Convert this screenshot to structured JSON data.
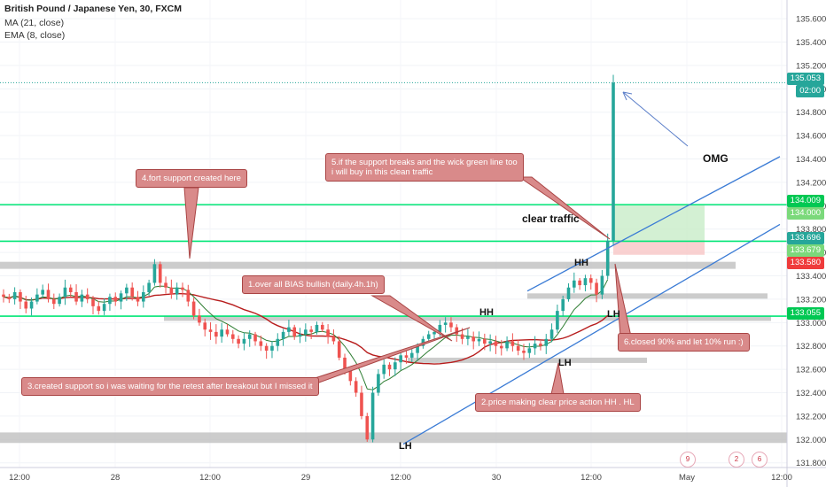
{
  "header": {
    "title": "British Pound / Japanese Yen, 30, FXCM",
    "ma": "MA (21, close)",
    "ema": "EMA (8, close)"
  },
  "chart_data": {
    "type": "candlestick",
    "ylim": [
      131.76,
      135.76
    ],
    "y_ticks": [
      "135.600",
      "135.400",
      "135.200",
      "135.000",
      "134.800",
      "134.600",
      "134.400",
      "134.200",
      "134.000",
      "133.800",
      "133.600",
      "133.400",
      "133.200",
      "133.000",
      "132.800",
      "132.600",
      "132.400",
      "132.200",
      "132.000",
      "131.800"
    ],
    "x_ticks": [
      "12:00",
      "28",
      "12:00",
      "29",
      "12:00",
      "30",
      "12:00",
      "May",
      "12:00"
    ],
    "price_labels": [
      {
        "value": "135.053",
        "color": "#26a69a"
      },
      {
        "value": "02:00",
        "color": "#26a69a"
      },
      {
        "value": "134.009",
        "color": "#00c853"
      },
      {
        "value": "134.000",
        "color": "#7bd97b"
      },
      {
        "value": "133.696",
        "color": "#26a69a"
      },
      {
        "value": "133.679",
        "color": "#7bd97b"
      },
      {
        "value": "133.580",
        "color": "#ef3b3b"
      },
      {
        "value": "133.055",
        "color": "#00c853"
      }
    ],
    "horizontal_lines": [
      {
        "price": 134.009,
        "color": "#00e676"
      },
      {
        "price": 133.696,
        "color": "#00e676"
      },
      {
        "price": 133.055,
        "color": "#00e676"
      }
    ],
    "support_zones": [
      {
        "from_time": 0,
        "to_time": 830,
        "price_top": 133.52,
        "price_bottom": 133.46
      },
      {
        "from_time": 185,
        "to_time": 870,
        "price_top": 133.06,
        "price_bottom": 133.02
      },
      {
        "from_time": 595,
        "to_time": 866,
        "price_top": 133.25,
        "price_bottom": 133.21
      },
      {
        "from_time": 460,
        "to_time": 730,
        "price_top": 132.7,
        "price_bottom": 132.67
      },
      {
        "from_time": 0,
        "to_time": 888,
        "price_top": 132.06,
        "price_bottom": 131.97
      }
    ],
    "candles_summary": {
      "bullish_color": "#26a69a",
      "bearish_color": "#ef5350",
      "closes": [
        133.22,
        133.2,
        133.26,
        133.18,
        133.12,
        133.18,
        133.24,
        133.28,
        133.2,
        133.16,
        133.22,
        133.3,
        133.26,
        133.18,
        133.24,
        133.2,
        133.14,
        133.1,
        133.16,
        133.22,
        133.18,
        133.25,
        133.3,
        133.22,
        133.18,
        133.26,
        133.34,
        133.5,
        133.34,
        133.3,
        133.24,
        133.3,
        133.28,
        133.18,
        133.06,
        133.0,
        132.94,
        132.92,
        132.88,
        132.94,
        132.9,
        132.86,
        132.82,
        132.86,
        132.9,
        132.84,
        132.8,
        132.76,
        132.8,
        132.86,
        132.92,
        132.96,
        132.88,
        132.9,
        132.94,
        132.92,
        132.98,
        132.94,
        132.88,
        132.84,
        132.7,
        132.6,
        132.5,
        132.4,
        132.2,
        132.0,
        132.4,
        132.56,
        132.64,
        132.6,
        132.66,
        132.72,
        132.7,
        132.74,
        132.8,
        132.86,
        132.9,
        132.92,
        132.98,
        133.0,
        132.96,
        132.9,
        132.86,
        132.88,
        132.84,
        132.86,
        132.82,
        132.84,
        132.8,
        132.78,
        132.84,
        132.8,
        132.76,
        132.74,
        132.78,
        132.82,
        132.8,
        132.86,
        132.94,
        133.1,
        133.2,
        133.3,
        133.36,
        133.32,
        133.38,
        133.34,
        133.24,
        133.4,
        133.7,
        135.053
      ]
    },
    "trend_channel": [
      {
        "from": {
          "time": 455,
          "price": 131.96
        },
        "to": {
          "time": 880,
          "price": 133.84
        }
      },
      {
        "from": {
          "time": 595,
          "price": 133.27
        },
        "to": {
          "time": 880,
          "price": 134.42
        }
      }
    ],
    "position_box": {
      "from_time": 692,
      "to_time": 795,
      "target_top": 134.009,
      "entry": 133.696,
      "stop": 133.58
    },
    "annotations": {
      "notes": [
        {
          "text": "4.fort support created here"
        },
        {
          "text": "5.if the support breaks and the wick green line too\ni will buy in this clean traffic"
        },
        {
          "text": "1.over all BIAS bullish (daily.4h.1h)"
        },
        {
          "text": "3.created support so i was waiting for  the retest after breakout but I missed it"
        },
        {
          "text": "2.price making clear price action HH . HL"
        },
        {
          "text": "6.closed 90% and let 10% run :)"
        }
      ],
      "labels": [
        {
          "text": "OMG"
        },
        {
          "text": "clear traffic"
        },
        {
          "text": "HH"
        },
        {
          "text": "HH"
        },
        {
          "text": "LH"
        },
        {
          "text": "LH"
        },
        {
          "text": "LH"
        }
      ],
      "emoji_counts": [
        "9",
        "2",
        "6"
      ]
    }
  }
}
